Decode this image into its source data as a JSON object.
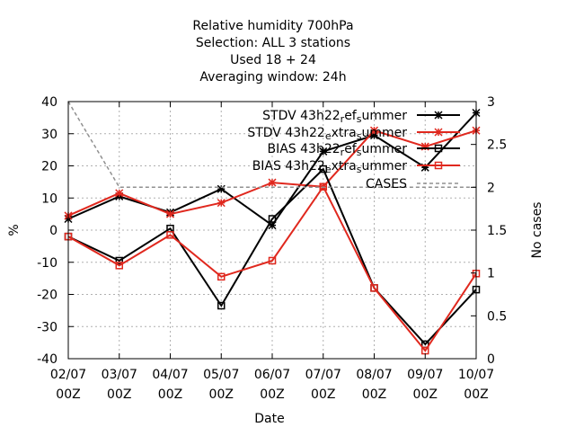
{
  "chart_data": {
    "type": "line",
    "title_lines": [
      "Relative humidity 700hPa",
      "Selection: ALL       3 stations",
      "Used  18  + 24",
      "Averaging window: 24h"
    ],
    "xlabel": "Date",
    "ylabel": "%",
    "y2label": "No cases",
    "ylim": [
      -40,
      40
    ],
    "y2lim": [
      0,
      3
    ],
    "yticks": [
      -40,
      -30,
      -20,
      -10,
      0,
      10,
      20,
      30,
      40
    ],
    "y2ticks": [
      0,
      0.5,
      1,
      1.5,
      2,
      2.5,
      3
    ],
    "categories": [
      [
        "02/07",
        "00Z"
      ],
      [
        "03/07",
        "00Z"
      ],
      [
        "04/07",
        "00Z"
      ],
      [
        "05/07",
        "00Z"
      ],
      [
        "06/07",
        "00Z"
      ],
      [
        "07/07",
        "00Z"
      ],
      [
        "08/07",
        "00Z"
      ],
      [
        "09/07",
        "00Z"
      ],
      [
        "10/07",
        "00Z"
      ]
    ],
    "grid": true,
    "legend_position": "top-right",
    "series": [
      {
        "name_parts": [
          [
            "STDV 43h22",
            "n"
          ],
          [
            "r",
            "sub"
          ],
          [
            "ef",
            "n"
          ],
          [
            "s",
            "sub"
          ],
          [
            "ummer",
            "n"
          ]
        ],
        "axis": "y",
        "color": "#000000",
        "marker": "star",
        "values": [
          3.5,
          10.5,
          5.5,
          12.8,
          1.5,
          24.5,
          29.5,
          19.5,
          36.5
        ]
      },
      {
        "name_parts": [
          [
            "STDV 43h22",
            "n"
          ],
          [
            "e",
            "sub"
          ],
          [
            "xtra",
            "n"
          ],
          [
            "s",
            "sub"
          ],
          [
            "ummer",
            "n"
          ]
        ],
        "axis": "y",
        "color": "#e0281e",
        "marker": "star",
        "values": [
          4.5,
          11.5,
          5.0,
          8.5,
          14.8,
          13.5,
          31.0,
          26.0,
          31.0
        ]
      },
      {
        "name_parts": [
          [
            "BIAS 43h22",
            "n"
          ],
          [
            "r",
            "sub"
          ],
          [
            "ef",
            "n"
          ],
          [
            "s",
            "sub"
          ],
          [
            "ummer",
            "n"
          ]
        ],
        "axis": "y",
        "color": "#000000",
        "marker": "square",
        "values": [
          -2.0,
          -9.5,
          0.5,
          -23.5,
          3.5,
          19.0,
          -18.0,
          -35.5,
          -18.5
        ]
      },
      {
        "name_parts": [
          [
            "BIAS 43h22",
            "n"
          ],
          [
            "e",
            "sub"
          ],
          [
            "xtra",
            "n"
          ],
          [
            "s",
            "sub"
          ],
          [
            "ummer",
            "n"
          ]
        ],
        "axis": "y",
        "color": "#e0281e",
        "marker": "square",
        "values": [
          -2.0,
          -11.0,
          -1.5,
          -14.5,
          -9.5,
          13.5,
          -18.0,
          -37.5,
          -13.5
        ]
      },
      {
        "name_parts": [
          [
            "CASES",
            "n"
          ]
        ],
        "axis": "y2",
        "color": "#909090",
        "marker": "none",
        "dashed": true,
        "values": [
          3,
          2,
          2,
          2,
          2,
          2,
          2,
          2,
          2
        ]
      }
    ]
  }
}
